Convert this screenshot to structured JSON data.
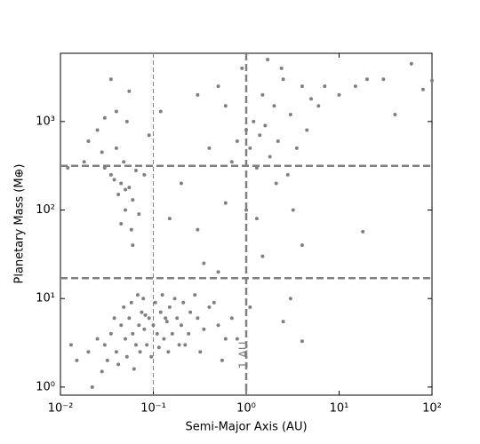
{
  "chart_data": {
    "type": "scatter",
    "x_label": "Semi-Major Axis (AU)",
    "y_label": "Planetary Mass (M⊕)",
    "xscale": "log",
    "yscale": "log",
    "xlim": [
      0.01,
      100
    ],
    "ylim": [
      0.81,
      5900
    ],
    "xticks": [
      {
        "value": 0.01,
        "label": "10⁻²"
      },
      {
        "value": 0.1,
        "label": "10⁻¹"
      },
      {
        "value": 1,
        "label": "10⁰"
      },
      {
        "value": 10,
        "label": "10¹"
      },
      {
        "value": 100,
        "label": "10²"
      }
    ],
    "yticks": [
      {
        "value": 1,
        "label": "10⁰"
      },
      {
        "value": 10,
        "label": "10¹"
      },
      {
        "value": 100,
        "label": "10²"
      },
      {
        "value": 1000,
        "label": "10³"
      }
    ],
    "color": "#808080",
    "x_lines": [
      {
        "value": 1,
        "style": "thick"
      },
      {
        "value": 0.1,
        "style": "thin"
      }
    ],
    "y_lines": [
      316,
      17
    ],
    "annotation": "1 AU",
    "x": [
      0.03,
      0.035,
      0.04,
      0.045,
      0.05,
      0.055,
      0.06,
      0.065,
      0.07,
      0.075,
      0.08,
      0.085,
      0.09,
      0.1,
      0.11,
      0.12,
      0.13,
      0.14,
      0.15,
      0.16,
      0.18,
      0.2,
      0.22,
      0.25,
      0.3,
      0.35,
      0.4,
      0.5,
      0.6,
      0.7,
      0.02,
      0.025,
      0.028,
      0.032,
      0.038,
      0.042,
      0.048,
      0.052,
      0.058,
      0.062,
      0.068,
      0.072,
      0.078,
      0.082,
      0.095,
      0.105,
      0.115,
      0.125,
      0.135,
      0.145,
      0.17,
      0.19,
      0.21,
      0.24,
      0.28,
      0.32,
      0.45,
      0.55,
      0.015,
      0.013,
      0.022,
      0.8,
      0.02,
      0.025,
      0.03,
      0.035,
      0.04,
      0.042,
      0.045,
      0.048,
      0.05,
      0.052,
      0.055,
      0.058,
      0.06,
      0.065,
      0.07,
      0.04,
      0.035,
      0.03,
      0.045,
      0.06,
      0.055,
      0.08,
      0.09,
      0.012,
      0.018,
      0.028,
      0.038,
      0.05,
      0.8,
      1,
      1.1,
      1.2,
      1.3,
      1.4,
      1.5,
      1.6,
      1.8,
      2,
      2.2,
      2.5,
      2.8,
      3,
      3.5,
      4,
      4.5,
      5,
      0.9,
      1.7,
      2.1,
      2.4,
      0.6,
      0.7,
      3.2,
      6,
      7,
      10,
      15,
      20,
      30,
      40,
      60,
      80,
      100,
      18,
      1,
      1.5,
      2.5,
      3,
      4,
      0.5,
      0.3,
      0.2,
      0.15,
      0.12,
      0.3,
      0.5,
      0.4,
      0.6,
      0.35,
      1.1,
      4,
      1.3
    ],
    "y": [
      3,
      4,
      2.5,
      5,
      3.5,
      6,
      4,
      3,
      5,
      7,
      4.5,
      3,
      6,
      5,
      4,
      7,
      3.5,
      5.5,
      8,
      4,
      6,
      5,
      3,
      7,
      6,
      4.5,
      8,
      5,
      3.5,
      6,
      2.5,
      3.5,
      1.5,
      2,
      6,
      1.8,
      8,
      2.2,
      9,
      1.6,
      11,
      2.5,
      10,
      6.5,
      2.2,
      9,
      2.8,
      11,
      6,
      2.5,
      10,
      3,
      9,
      4,
      11,
      2.5,
      9,
      2,
      2,
      3,
      1,
      3.5,
      600,
      800,
      300,
      250,
      500,
      150,
      200,
      350,
      100,
      1000,
      180,
      60,
      130,
      280,
      90,
      1300,
      3000,
      1100,
      70,
      40,
      2200,
      250,
      700,
      300,
      350,
      450,
      220,
      170,
      600,
      800,
      500,
      1000,
      300,
      700,
      2000,
      900,
      400,
      1500,
      600,
      3000,
      250,
      1200,
      500,
      2500,
      800,
      1800,
      4000,
      5000,
      200,
      4000,
      1500,
      350,
      100,
      1500,
      2500,
      2000,
      2500,
      3000,
      3000,
      1200,
      4500,
      2300,
      2900,
      57,
      100,
      30,
      5.5,
      10,
      3.3,
      20,
      60,
      200,
      80,
      1300,
      2000,
      2500,
      500,
      120,
      25,
      8,
      40,
      80
    ]
  }
}
